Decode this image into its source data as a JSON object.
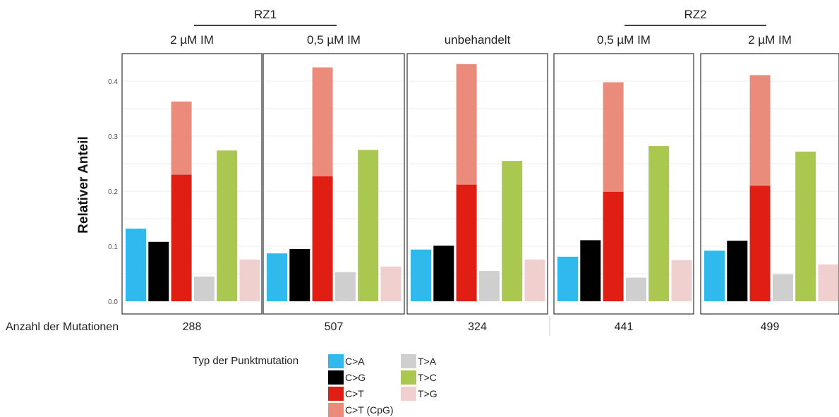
{
  "chart_data": {
    "type": "bar",
    "stacked_category": "C>T",
    "ylabel": "Relativer Anteil",
    "yticks": [
      "0.0",
      "0.1",
      "0.2",
      "0.3",
      "0.4"
    ],
    "ylim": [
      0,
      0.45
    ],
    "grid": true,
    "groups": [
      {
        "label": "RZ1",
        "panels": [
          0,
          1
        ]
      },
      {
        "label": "RZ2",
        "panels": [
          3,
          4
        ]
      }
    ],
    "count_row_label": "Anzahl der Mutationen",
    "legend": {
      "title": "Typ der Punktmutation",
      "entries": [
        {
          "label": "C>A",
          "color": "#2fb9ec"
        },
        {
          "label": "C>G",
          "color": "#000000"
        },
        {
          "label": "C>T",
          "color": "#e01e14"
        },
        {
          "label": "C>T (CpG)",
          "color": "#ea8b7c"
        },
        {
          "label": "T>A",
          "color": "#cfcfcf"
        },
        {
          "label": "T>C",
          "color": "#aac74f"
        },
        {
          "label": "T>G",
          "color": "#f0cfcf"
        }
      ]
    },
    "panels": [
      {
        "label": "2 µM IM",
        "count": "288",
        "values": {
          "C>A": 0.132,
          "C>G": 0.108,
          "C>T": 0.23,
          "C>T (CpG)": 0.133,
          "T>A": 0.045,
          "T>C": 0.274,
          "T>G": 0.076
        }
      },
      {
        "label": "0,5 µM IM",
        "count": "507",
        "values": {
          "C>A": 0.087,
          "C>G": 0.095,
          "C>T": 0.227,
          "C>T (CpG)": 0.198,
          "T>A": 0.053,
          "T>C": 0.275,
          "T>G": 0.063
        }
      },
      {
        "label": "unbehandelt",
        "count": "324",
        "values": {
          "C>A": 0.094,
          "C>G": 0.101,
          "C>T": 0.212,
          "C>T (CpG)": 0.219,
          "T>A": 0.055,
          "T>C": 0.255,
          "T>G": 0.076
        }
      },
      {
        "label": "0,5 µM IM",
        "count": "441",
        "values": {
          "C>A": 0.081,
          "C>G": 0.111,
          "C>T": 0.199,
          "C>T (CpG)": 0.199,
          "T>A": 0.043,
          "T>C": 0.282,
          "T>G": 0.075
        }
      },
      {
        "label": "2 µM IM",
        "count": "499",
        "values": {
          "C>A": 0.092,
          "C>G": 0.11,
          "C>T": 0.21,
          "C>T (CpG)": 0.201,
          "T>A": 0.049,
          "T>C": 0.272,
          "T>G": 0.067
        }
      }
    ]
  }
}
